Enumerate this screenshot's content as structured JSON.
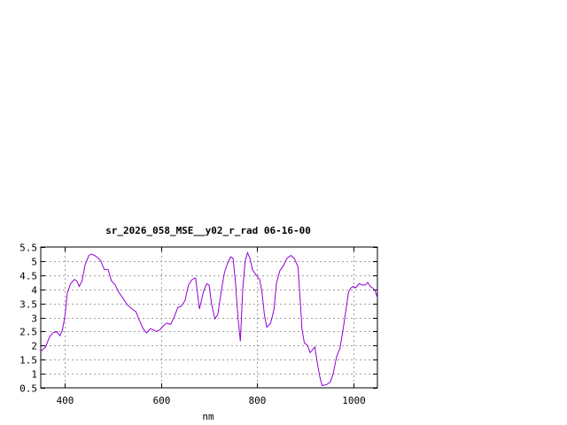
{
  "chart_data": {
    "type": "line",
    "title": "sr_2026_058_MSE__y02_r_rad 06-16-00",
    "xlabel": "nm",
    "ylabel": "",
    "xlim": [
      350,
      1050
    ],
    "ylim": [
      0.5,
      5.5
    ],
    "x_ticks": [
      400,
      600,
      800,
      1000
    ],
    "y_ticks": [
      0.5,
      1,
      1.5,
      2,
      2.5,
      3,
      3.5,
      4,
      4.5,
      5,
      5.5
    ],
    "x_tick_labels": [
      "400",
      "600",
      "800",
      "1000"
    ],
    "y_tick_labels": [
      "0.5",
      "1",
      "1.5",
      "2",
      "2.5",
      "3",
      "3.5",
      "4",
      "4.5",
      "5",
      "5.5"
    ],
    "grid": true,
    "legend": "none",
    "line_color": "#9400d3",
    "series": [
      {
        "values": [
          [
            350,
            1.8
          ],
          [
            360,
            1.95
          ],
          [
            368,
            2.3
          ],
          [
            375,
            2.45
          ],
          [
            383,
            2.5
          ],
          [
            390,
            2.35
          ],
          [
            395,
            2.55
          ],
          [
            400,
            3.0
          ],
          [
            405,
            3.85
          ],
          [
            412,
            4.2
          ],
          [
            420,
            4.35
          ],
          [
            425,
            4.3
          ],
          [
            430,
            4.1
          ],
          [
            436,
            4.3
          ],
          [
            442,
            4.85
          ],
          [
            450,
            5.2
          ],
          [
            455,
            5.25
          ],
          [
            462,
            5.2
          ],
          [
            470,
            5.1
          ],
          [
            475,
            5.0
          ],
          [
            482,
            4.7
          ],
          [
            490,
            4.7
          ],
          [
            497,
            4.3
          ],
          [
            505,
            4.15
          ],
          [
            512,
            3.9
          ],
          [
            520,
            3.7
          ],
          [
            530,
            3.45
          ],
          [
            540,
            3.3
          ],
          [
            548,
            3.2
          ],
          [
            555,
            2.9
          ],
          [
            563,
            2.6
          ],
          [
            570,
            2.45
          ],
          [
            578,
            2.6
          ],
          [
            585,
            2.55
          ],
          [
            590,
            2.5
          ],
          [
            597,
            2.55
          ],
          [
            605,
            2.7
          ],
          [
            612,
            2.8
          ],
          [
            620,
            2.75
          ],
          [
            627,
            3.0
          ],
          [
            635,
            3.35
          ],
          [
            642,
            3.4
          ],
          [
            650,
            3.6
          ],
          [
            657,
            4.15
          ],
          [
            665,
            4.35
          ],
          [
            672,
            4.4
          ],
          [
            680,
            3.3
          ],
          [
            688,
            3.9
          ],
          [
            695,
            4.2
          ],
          [
            700,
            4.15
          ],
          [
            705,
            3.5
          ],
          [
            712,
            2.95
          ],
          [
            718,
            3.1
          ],
          [
            725,
            3.9
          ],
          [
            732,
            4.6
          ],
          [
            738,
            4.9
          ],
          [
            745,
            5.15
          ],
          [
            750,
            5.1
          ],
          [
            755,
            4.2
          ],
          [
            760,
            3.0
          ],
          [
            765,
            2.15
          ],
          [
            770,
            4.0
          ],
          [
            775,
            5.0
          ],
          [
            780,
            5.3
          ],
          [
            785,
            5.1
          ],
          [
            790,
            4.7
          ],
          [
            798,
            4.5
          ],
          [
            805,
            4.35
          ],
          [
            810,
            3.9
          ],
          [
            815,
            3.1
          ],
          [
            820,
            2.65
          ],
          [
            828,
            2.8
          ],
          [
            835,
            3.3
          ],
          [
            840,
            4.2
          ],
          [
            847,
            4.65
          ],
          [
            855,
            4.85
          ],
          [
            862,
            5.1
          ],
          [
            870,
            5.2
          ],
          [
            877,
            5.1
          ],
          [
            885,
            4.8
          ],
          [
            890,
            3.5
          ],
          [
            893,
            2.6
          ],
          [
            898,
            2.1
          ],
          [
            905,
            2.0
          ],
          [
            910,
            1.75
          ],
          [
            915,
            1.85
          ],
          [
            920,
            1.95
          ],
          [
            925,
            1.4
          ],
          [
            930,
            0.9
          ],
          [
            935,
            0.58
          ],
          [
            945,
            0.62
          ],
          [
            952,
            0.7
          ],
          [
            958,
            1.0
          ],
          [
            965,
            1.6
          ],
          [
            972,
            1.9
          ],
          [
            978,
            2.5
          ],
          [
            985,
            3.3
          ],
          [
            990,
            3.9
          ],
          [
            995,
            4.05
          ],
          [
            1000,
            4.1
          ],
          [
            1005,
            4.05
          ],
          [
            1012,
            4.2
          ],
          [
            1018,
            4.15
          ],
          [
            1025,
            4.15
          ],
          [
            1030,
            4.25
          ],
          [
            1035,
            4.1
          ],
          [
            1040,
            4.05
          ],
          [
            1045,
            3.95
          ],
          [
            1050,
            3.7
          ]
        ]
      }
    ]
  }
}
